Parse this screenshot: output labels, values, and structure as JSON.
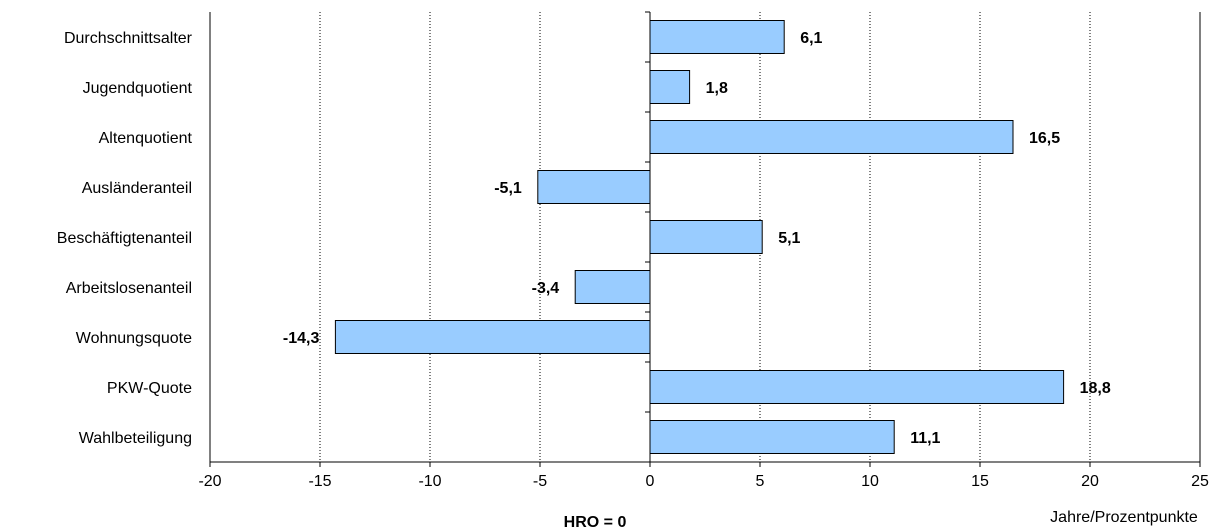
{
  "chart_data": {
    "type": "bar",
    "orientation": "horizontal",
    "title": "",
    "categories": [
      "Durchschnittsalter",
      "Jugendquotient",
      "Altenquotient",
      "Ausländeranteil",
      "Beschäftigtenanteil",
      "Arbeitslosenanteil",
      "Wohnungsquote",
      "PKW-Quote",
      "Wahlbeteiligung"
    ],
    "values": [
      6.1,
      1.8,
      16.5,
      -5.1,
      5.1,
      -3.4,
      -14.3,
      18.8,
      11.1
    ],
    "value_labels": [
      "6,1",
      "1,8",
      "16,5",
      "-5,1",
      "5,1",
      "-3,4",
      "-14,3",
      "18,8",
      "11,1"
    ],
    "xlim": [
      -20,
      25
    ],
    "xticks": [
      -20,
      -15,
      -10,
      -5,
      0,
      5,
      10,
      15,
      20,
      25
    ],
    "xtick_labels": [
      "-20",
      "-15",
      "-10",
      "-5",
      "0",
      "5",
      "10",
      "15",
      "20",
      "25"
    ],
    "xlabel": "Jahre/Prozentpunkte",
    "baseline_label": "HRO = 0",
    "grid": "vertical dotted",
    "legend": "none",
    "colors": {
      "bar_fill": "#99CCFF",
      "bar_stroke": "#000000",
      "grid": "#000000"
    }
  }
}
